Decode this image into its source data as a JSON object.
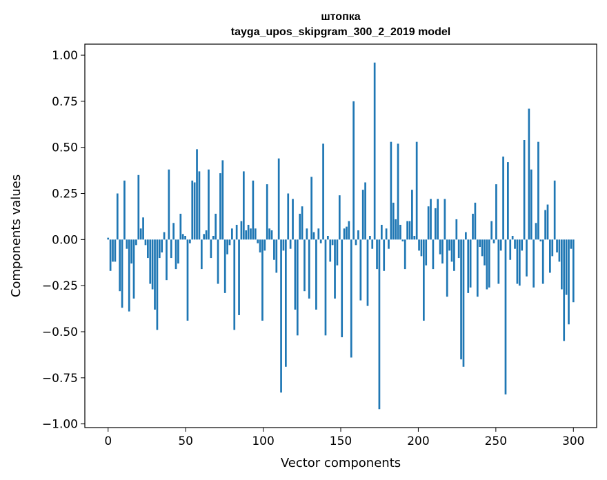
{
  "chart_data": {
    "type": "bar",
    "title_line1": "штопка",
    "title_line2": "tayga_upos_skipgram_300_2_2019 model",
    "xlabel": "Vector components",
    "ylabel": "Components values",
    "xlim": [
      -15,
      315
    ],
    "ylim": [
      -1.02,
      1.06
    ],
    "xticks": [
      0,
      50,
      100,
      150,
      200,
      250,
      300
    ],
    "xtick_labels": [
      "0",
      "50",
      "100",
      "150",
      "200",
      "250",
      "300"
    ],
    "yticks": [
      1.0,
      0.75,
      0.5,
      0.25,
      0.0,
      -0.25,
      -0.5,
      -0.75,
      -1.0
    ],
    "ytick_labels": [
      "1.00",
      "0.75",
      "0.50",
      "0.25",
      "0.00",
      "−0.25",
      "−0.50",
      "−0.75",
      "−1.00"
    ],
    "bar_color": "#1f77b4",
    "values": [
      0.01,
      -0.17,
      -0.12,
      -0.12,
      0.25,
      -0.28,
      -0.37,
      0.32,
      -0.05,
      -0.39,
      -0.13,
      -0.32,
      -0.03,
      0.35,
      0.06,
      0.12,
      -0.03,
      -0.1,
      -0.24,
      -0.27,
      -0.38,
      -0.49,
      -0.1,
      -0.07,
      0.04,
      -0.22,
      0.38,
      -0.1,
      0.09,
      -0.16,
      -0.13,
      0.14,
      0.03,
      0.02,
      -0.44,
      -0.02,
      0.32,
      0.31,
      0.49,
      0.37,
      -0.16,
      0.03,
      0.05,
      0.38,
      -0.1,
      0.02,
      0.14,
      -0.24,
      0.36,
      0.43,
      -0.29,
      -0.08,
      -0.03,
      0.06,
      -0.49,
      0.08,
      -0.41,
      0.1,
      0.37,
      0.05,
      0.08,
      0.06,
      0.32,
      0.06,
      -0.02,
      -0.07,
      -0.44,
      -0.06,
      0.3,
      0.06,
      0.05,
      -0.11,
      -0.18,
      0.44,
      -0.83,
      -0.06,
      -0.69,
      0.25,
      -0.05,
      0.22,
      -0.38,
      -0.52,
      0.14,
      0.18,
      -0.28,
      0.06,
      -0.32,
      0.34,
      0.04,
      -0.38,
      0.06,
      -0.02,
      0.52,
      -0.52,
      0.02,
      -0.12,
      -0.03,
      -0.32,
      -0.14,
      0.24,
      -0.53,
      0.06,
      0.07,
      0.1,
      -0.64,
      0.75,
      -0.03,
      0.05,
      -0.33,
      0.27,
      0.31,
      -0.36,
      0.02,
      -0.05,
      0.96,
      -0.16,
      -0.92,
      0.08,
      -0.17,
      0.06,
      -0.05,
      0.53,
      0.2,
      0.11,
      0.52,
      0.08,
      -0.01,
      -0.16,
      0.1,
      0.1,
      0.27,
      0.02,
      0.53,
      -0.06,
      -0.09,
      -0.44,
      -0.14,
      0.18,
      0.22,
      -0.16,
      0.17,
      0.22,
      -0.08,
      -0.13,
      0.22,
      -0.31,
      -0.06,
      -0.12,
      -0.17,
      0.11,
      -0.1,
      -0.65,
      -0.69,
      0.04,
      -0.29,
      -0.26,
      0.14,
      0.2,
      -0.31,
      -0.04,
      -0.09,
      -0.14,
      -0.27,
      -0.26,
      0.1,
      -0.02,
      0.3,
      -0.24,
      -0.06,
      0.45,
      -0.84,
      0.42,
      -0.11,
      0.02,
      -0.05,
      -0.24,
      -0.25,
      -0.06,
      0.54,
      -0.2,
      0.71,
      0.38,
      -0.26,
      0.09,
      0.53,
      -0.01,
      -0.24,
      0.16,
      0.19,
      -0.18,
      -0.09,
      0.32,
      -0.07,
      -0.12,
      -0.27,
      -0.55,
      -0.3,
      -0.46,
      -0.05,
      -0.34
    ]
  }
}
